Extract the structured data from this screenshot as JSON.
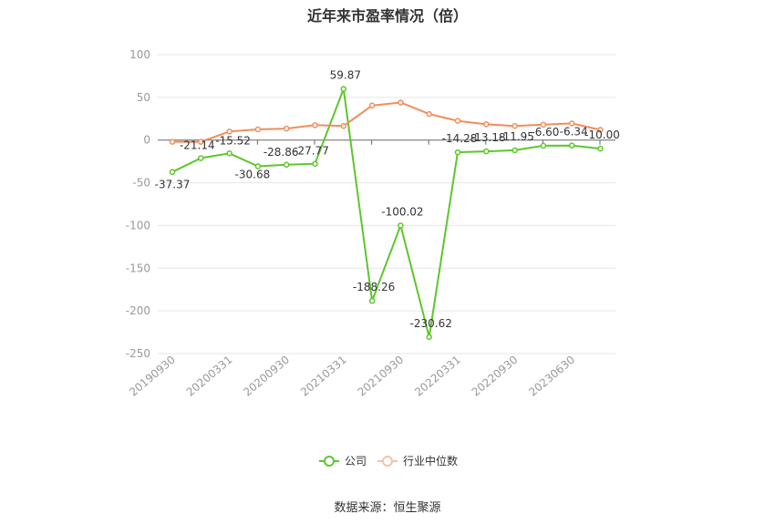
{
  "chart_data": {
    "type": "line",
    "title": "近年来市盈率情况（倍）",
    "x_tick_labels": [
      "20190930",
      "20200331",
      "20200930",
      "20210331",
      "20210930",
      "20220331",
      "20220930",
      "20230630"
    ],
    "ylim": [
      -250,
      100
    ],
    "yticks": [
      100,
      50,
      0,
      -50,
      -100,
      -150,
      -200,
      -250
    ],
    "series": [
      {
        "name": "公司",
        "color": "#5cc72b",
        "values": [
          -37.37,
          -21.14,
          -15.52,
          -30.68,
          -28.86,
          -27.77,
          59.87,
          -188.26,
          -100.02,
          -230.62,
          -14.28,
          -13.18,
          -11.95,
          -6.6,
          -6.34,
          -10.0
        ],
        "labels": [
          "-37.37",
          "-21.14",
          "-15.52",
          "-30.68",
          "-28.86",
          "-27.77",
          "59.87",
          "-188.26",
          "-100.02",
          "-230.62",
          "-14.28",
          "-13.18",
          "-11.95",
          "-6.60",
          "-6.34",
          "-10.00"
        ]
      },
      {
        "name": "行业中位数",
        "color": "#f28c5a",
        "values": [
          -2,
          -2,
          10,
          12.5,
          13.5,
          17.5,
          16.5,
          40.5,
          44,
          30.5,
          22.5,
          18.5,
          16.5,
          18,
          19.5,
          12
        ]
      }
    ],
    "legend_position": "bottom",
    "grid": true
  },
  "source": "数据来源：恒生聚源"
}
